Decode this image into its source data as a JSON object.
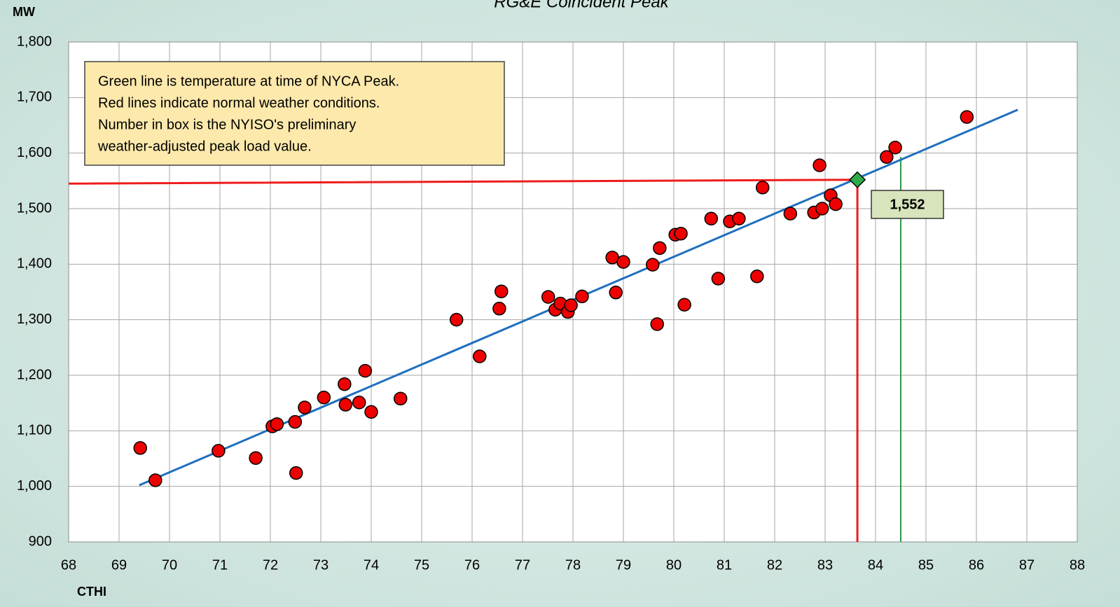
{
  "chart_data": {
    "type": "scatter",
    "title": "RG&E Coincident Peak",
    "y_label": "MW",
    "x_label": "CTHI",
    "annotation": [
      "Green line is temperature at time of NYCA Peak.",
      "Red lines indicate normal weather conditions.",
      "Number in box is the NYISO's preliminary",
      "weather-adjusted peak load value."
    ],
    "x": [
      69.42,
      69.72,
      70.97,
      71.71,
      72.04,
      72.13,
      72.49,
      72.51,
      72.68,
      73.06,
      73.47,
      73.49,
      73.76,
      73.88,
      74.0,
      74.58,
      75.69,
      76.15,
      76.54,
      76.58,
      77.51,
      77.65,
      77.75,
      77.9,
      77.96,
      78.18,
      78.78,
      78.85,
      79.0,
      79.58,
      79.67,
      79.72,
      80.03,
      80.14,
      80.21,
      80.74,
      80.88,
      81.11,
      81.29,
      81.65,
      81.76,
      82.31,
      82.78,
      82.89,
      82.94,
      83.11,
      83.21,
      84.22,
      84.39,
      85.81
    ],
    "values": [
      1069,
      1011,
      1064,
      1051,
      1108,
      1112,
      1116,
      1024,
      1142,
      1160,
      1184,
      1147,
      1151,
      1208,
      1134,
      1158,
      1300,
      1234,
      1320,
      1351,
      1341,
      1318,
      1329,
      1314,
      1326,
      1342,
      1412,
      1349,
      1404,
      1399,
      1292,
      1429,
      1453,
      1455,
      1327,
      1482,
      1374,
      1477,
      1482,
      1378,
      1538,
      1491,
      1493,
      1578,
      1500,
      1524,
      1508,
      1593,
      1610,
      1665
    ],
    "color": "#ee0000",
    "trend": {
      "x": [
        69.4,
        86.82
      ],
      "values": [
        1002,
        1678
      ],
      "color": "#1f6fbf"
    },
    "normal_lines": {
      "x": [
        68,
        83.64,
        83.64
      ],
      "values": [
        1545,
        1552,
        900
      ],
      "color": "#ee1c1c"
    },
    "peak_line": {
      "x": [
        84.5,
        84.5
      ],
      "values": [
        1593,
        900
      ],
      "color": "#2a9a48"
    },
    "peak": {
      "x": [
        83.64
      ],
      "values": [
        1552
      ],
      "value_labels": [
        "1,552"
      ],
      "color": "#2eaa4a"
    },
    "xlim": [
      68,
      88
    ],
    "ylim": [
      900,
      1800
    ],
    "xticks": [
      68,
      69,
      70,
      71,
      72,
      73,
      74,
      75,
      76,
      77,
      78,
      79,
      80,
      81,
      82,
      83,
      84,
      85,
      86,
      87,
      88
    ],
    "yticks": [
      900,
      {
        "value": 1000,
        "label": "1,000"
      },
      {
        "value": 1100,
        "label": "1,100"
      },
      {
        "value": 1200,
        "label": "1,200"
      },
      {
        "value": 1300,
        "label": "1,300"
      },
      {
        "value": 1400,
        "label": "1,400"
      },
      {
        "value": 1500,
        "label": "1,500"
      },
      {
        "value": 1600,
        "label": "1,600"
      },
      {
        "value": 1700,
        "label": "1,700"
      },
      {
        "value": 1800,
        "label": "1,800"
      }
    ],
    "grid": true
  }
}
